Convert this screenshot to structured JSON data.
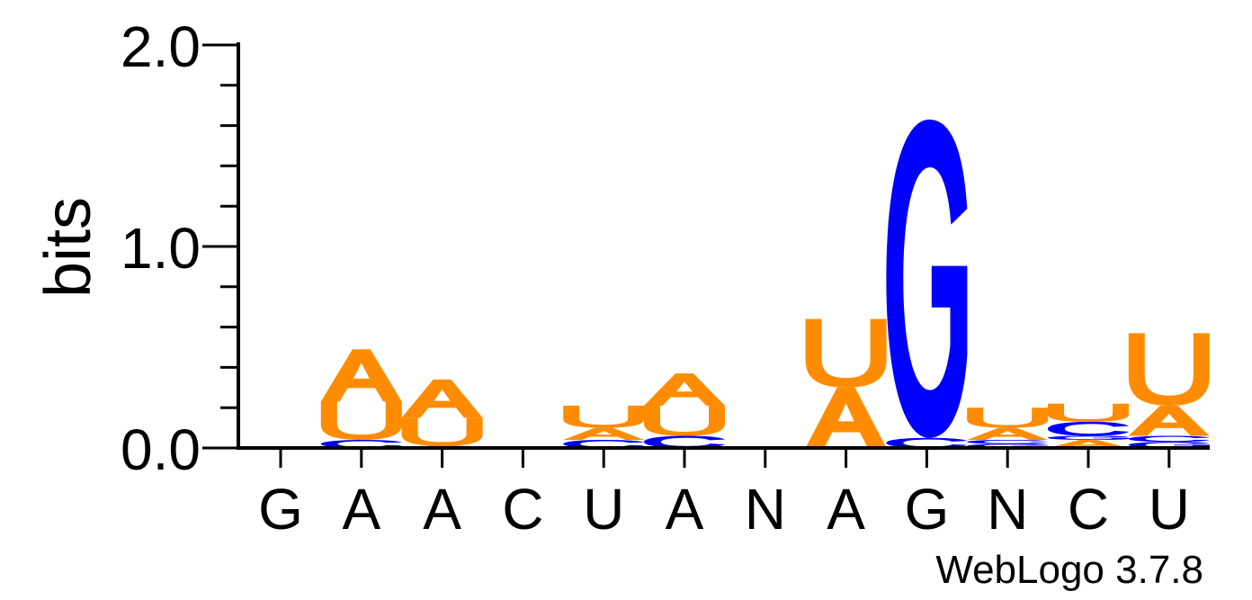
{
  "chart_data": {
    "type": "sequence-logo",
    "ylabel": "bits",
    "ylim": [
      0,
      2.0
    ],
    "y_tick_labels": [
      "0.0",
      "1.0",
      "2.0"
    ],
    "minor_tick_step": 0.2,
    "x_tick_labels": [
      "G",
      "A",
      "A",
      "C",
      "U",
      "A",
      "N",
      "A",
      "G",
      "N",
      "C",
      "U"
    ],
    "credit": "WebLogo 3.7.8",
    "colors": {
      "A": "#ff8c00",
      "U": "#ff8c00",
      "G": "#0000ff",
      "C": "#0000ff"
    },
    "positions": [
      {
        "consensus": "G",
        "stack": []
      },
      {
        "consensus": "A",
        "stack": [
          {
            "base": "C",
            "bits": 0.04
          },
          {
            "base": "U",
            "bits": 0.19
          },
          {
            "base": "A",
            "bits": 0.26
          }
        ]
      },
      {
        "consensus": "A",
        "stack": [
          {
            "base": "C",
            "bits": 0.01
          },
          {
            "base": "U",
            "bits": 0.14
          },
          {
            "base": "A",
            "bits": 0.19
          }
        ]
      },
      {
        "consensus": "C",
        "stack": []
      },
      {
        "consensus": "U",
        "stack": [
          {
            "base": "C",
            "bits": 0.04
          },
          {
            "base": "A",
            "bits": 0.06
          },
          {
            "base": "U",
            "bits": 0.11
          }
        ]
      },
      {
        "consensus": "A",
        "stack": [
          {
            "base": "C",
            "bits": 0.06
          },
          {
            "base": "U",
            "bits": 0.15
          },
          {
            "base": "A",
            "bits": 0.16
          }
        ]
      },
      {
        "consensus": "N",
        "stack": []
      },
      {
        "consensus": "A",
        "stack": [
          {
            "base": "A",
            "bits": 0.3
          },
          {
            "base": "U",
            "bits": 0.34
          }
        ]
      },
      {
        "consensus": "G",
        "stack": [
          {
            "base": "C",
            "bits": 0.05
          },
          {
            "base": "G",
            "bits": 1.58
          }
        ]
      },
      {
        "consensus": "N",
        "stack": [
          {
            "base": "G",
            "bits": 0.02
          },
          {
            "base": "C",
            "bits": 0.02
          },
          {
            "base": "A",
            "bits": 0.06
          },
          {
            "base": "U",
            "bits": 0.1
          }
        ]
      },
      {
        "consensus": "C",
        "stack": [
          {
            "base": "A",
            "bits": 0.04
          },
          {
            "base": "G",
            "bits": 0.02
          },
          {
            "base": "C",
            "bits": 0.07
          },
          {
            "base": "U",
            "bits": 0.09
          }
        ]
      },
      {
        "consensus": "U",
        "stack": [
          {
            "base": "G",
            "bits": 0.03
          },
          {
            "base": "C",
            "bits": 0.03
          },
          {
            "base": "A",
            "bits": 0.15
          },
          {
            "base": "U",
            "bits": 0.36
          }
        ]
      }
    ]
  }
}
